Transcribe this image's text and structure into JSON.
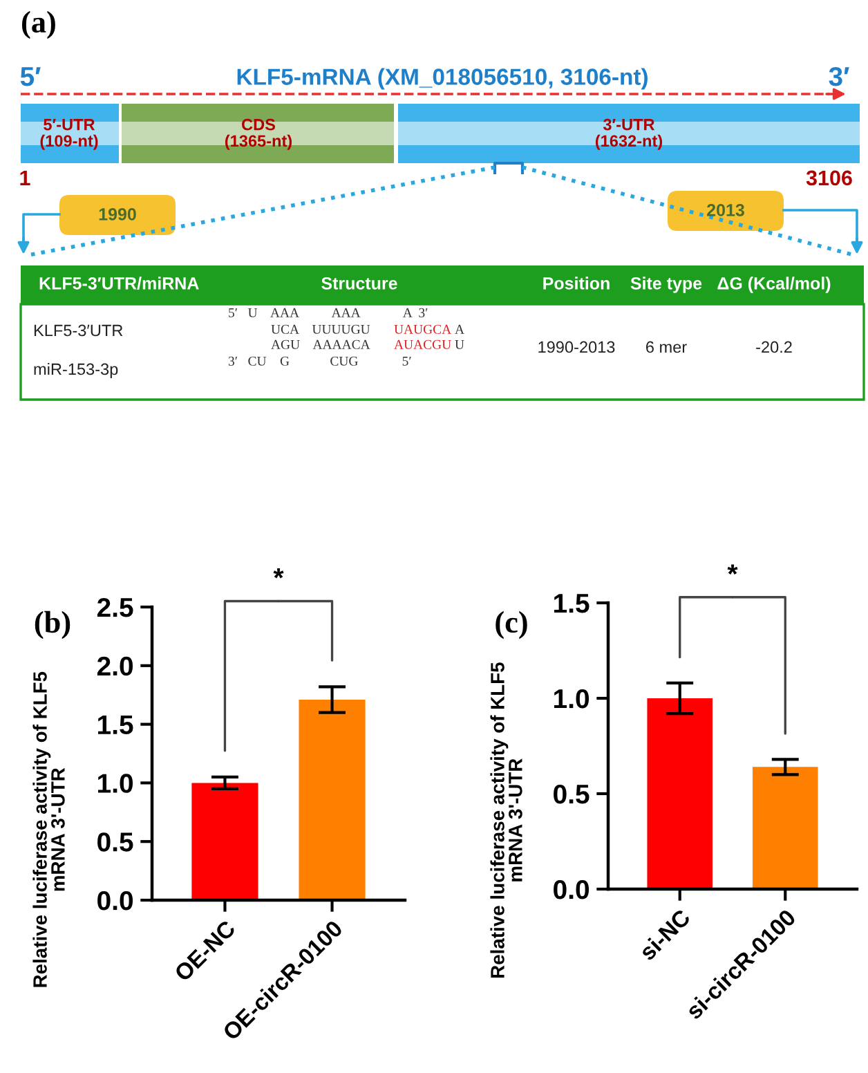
{
  "chart_data": [
    {
      "type": "other",
      "title": "(a)",
      "annotations": [
        "5′",
        "KLF5-mRNA (XM_018056510, 3106-nt)",
        "3′",
        "5′-UTR\n(109-nt)",
        "CDS\n(1365-nt)",
        "3′-UTR\n(1632-nt)",
        "1",
        "3106",
        "1990",
        "2013",
        "KLF5-3′UTR/miRNA",
        "Structure",
        "Position",
        "Site type",
        "ΔG (Kcal/mol)",
        "KLF5-3′UTR",
        "miR-153-3p",
        "5′   U    AAA          AAA             A  3′",
        "UCA    UUUUGU",
        "UAUGCA",
        "A",
        "AGU    AAAACA",
        "AUACGU",
        "U",
        "3′   CU    G            CUG             5′",
        "1990-2013",
        "6 mer",
        "-20.2"
      ]
    },
    {
      "type": "bar",
      "title": "(b)",
      "ylabel": "Relative luciferase activity of KLF5\nmRNA 3'-UTR",
      "categories": [
        "OE-NC",
        "OE-circR-0100"
      ],
      "values": [
        1.0,
        1.71
      ],
      "errors": [
        0.05,
        0.11
      ],
      "colors": [
        "#ff0000",
        "#ff8000"
      ],
      "ylim": [
        0,
        2.5
      ],
      "yticks": [
        {
          "value": 0,
          "label": "0.0"
        },
        0.5,
        {
          "value": 1,
          "label": "1.0"
        },
        1.5,
        {
          "value": 2,
          "label": "2.0"
        },
        2.5
      ],
      "annotations": [
        "*"
      ]
    },
    {
      "type": "bar",
      "title": "(c)",
      "ylabel": "Relative luciferase activity of KLF5\nmRNA 3'-UTR",
      "categories": [
        "si-NC",
        "si-circR-0100"
      ],
      "values": [
        1.0,
        0.64
      ],
      "errors": [
        0.08,
        0.04
      ],
      "colors": [
        "#ff0000",
        "#ff8000"
      ],
      "ylim": [
        0,
        1.5
      ],
      "yticks": [
        {
          "value": 0,
          "label": "0.0"
        },
        0.5,
        {
          "value": 1,
          "label": "1.0"
        },
        1.5
      ],
      "annotations": [
        "*"
      ]
    }
  ]
}
